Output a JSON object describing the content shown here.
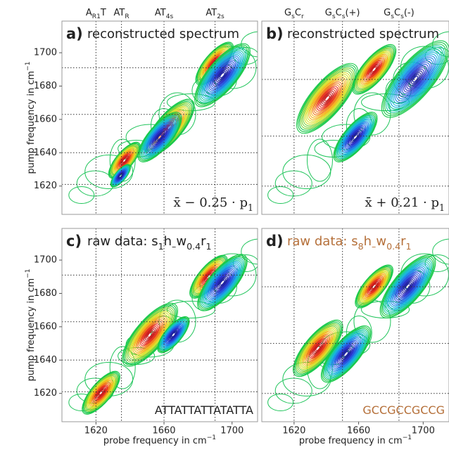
{
  "chart_data": [
    {
      "type": "contour",
      "title": "a)",
      "subtitle": [
        "reconstructed spectrum"
      ],
      "annotation": [
        "x̄ − 0.25 · p",
        {
          "sub": "1"
        }
      ],
      "xlim": [
        1600,
        1715
      ],
      "ylim": [
        1603,
        1719
      ],
      "yticks": [
        1620,
        1640,
        1660,
        1680,
        1700
      ],
      "ylabel": [
        "pump frequency in cm",
        {
          "sup": "−1"
        }
      ],
      "vlines": [
        {
          "value": 1620,
          "label": [
            "A",
            {
              "sub": "R1"
            },
            "T"
          ]
        },
        {
          "value": 1635,
          "label": [
            "AT",
            {
              "sub": "R"
            }
          ]
        },
        {
          "value": 1660,
          "label": [
            "AT",
            {
              "sub": "4s"
            }
          ]
        },
        {
          "value": 1690,
          "label": [
            "AT",
            {
              "sub": "2s"
            }
          ]
        }
      ],
      "hlines": [
        1691,
        1663,
        1640,
        1621
      ]
    },
    {
      "type": "contour",
      "title": "b)",
      "subtitle": [
        "reconstructed spectrum"
      ],
      "annotation": [
        "x̄ + 0.21 · p",
        {
          "sub": "1"
        }
      ],
      "xlim": [
        1600,
        1716
      ],
      "ylim": [
        1603,
        1719
      ],
      "vlines": [
        {
          "value": 1620,
          "label": [
            "G",
            {
              "sub": "s"
            },
            "C",
            {
              "sub": "r"
            }
          ]
        },
        {
          "value": 1650,
          "label": [
            "G",
            {
              "sub": "s"
            },
            "C",
            {
              "sub": "s"
            },
            "(+)"
          ]
        },
        {
          "value": 1685,
          "label": [
            "G",
            {
              "sub": "s"
            },
            "C",
            {
              "sub": "s"
            },
            "(-)"
          ]
        }
      ],
      "hlines": [
        1684,
        1650,
        1620
      ]
    },
    {
      "type": "contour",
      "title": "c)",
      "subtitle": [
        "raw data: s",
        {
          "sub": "1"
        },
        "h",
        {
          "sub": "–"
        },
        "w",
        {
          "sub": "0.4"
        },
        "r",
        {
          "sub": "1"
        }
      ],
      "subtitle_color": "#222222",
      "annotation": [
        "ATTATTATTATATTA"
      ],
      "annotation_color": "#222222",
      "xlim": [
        1600,
        1715
      ],
      "ylim": [
        1603,
        1719
      ],
      "xticks": [
        1620,
        1660,
        1700
      ],
      "yticks": [
        1620,
        1640,
        1660,
        1680,
        1700
      ],
      "xlabel": [
        "probe frequency in cm",
        {
          "sup": "−1"
        }
      ],
      "ylabel": [
        "pump frequency in cm",
        {
          "sup": "−1"
        }
      ],
      "vlines": [
        {
          "value": 1620
        },
        {
          "value": 1635
        },
        {
          "value": 1660
        },
        {
          "value": 1690
        }
      ],
      "hlines": [
        1691,
        1663,
        1640,
        1621
      ]
    },
    {
      "type": "contour",
      "title": "d)",
      "subtitle": [
        "raw data: s",
        {
          "sub": "8"
        },
        "h",
        {
          "sub": "–"
        },
        "w",
        {
          "sub": "0.4"
        },
        "r",
        {
          "sub": "1"
        }
      ],
      "subtitle_color": "#b5703a",
      "annotation": [
        "GCCGCCGCCG"
      ],
      "annotation_color": "#b5703a",
      "xlim": [
        1600,
        1716
      ],
      "ylim": [
        1603,
        1719
      ],
      "xticks": [
        1620,
        1660,
        1700
      ],
      "xlabel": [
        "probe frequency in cm",
        {
          "sup": "−1"
        }
      ],
      "vlines": [
        {
          "value": 1620
        },
        {
          "value": 1650
        },
        {
          "value": 1685
        }
      ],
      "hlines": [
        1684,
        1650,
        1620
      ]
    }
  ]
}
